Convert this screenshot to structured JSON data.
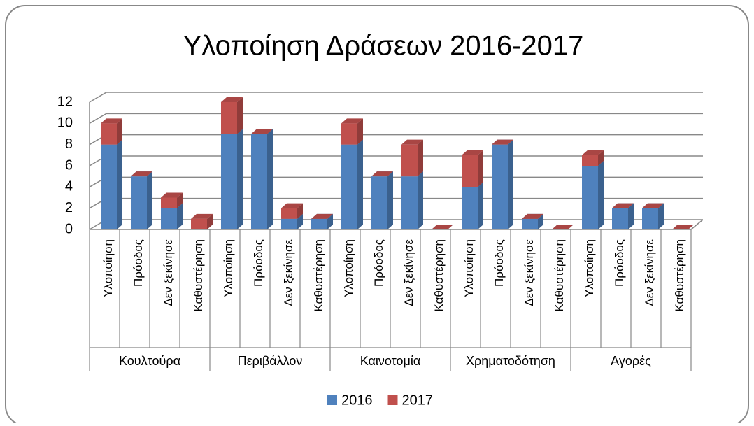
{
  "chart_data": {
    "type": "bar3d_stacked",
    "title": "Υλοποίηση Δράσεων 2016-2017",
    "groups": [
      "Κουλτούρα",
      "Περιβάλλον",
      "Καινοτομία",
      "Χρηματοδότηση",
      "Αγορές"
    ],
    "categories": [
      "Υλοποίηση",
      "Πρόοδος",
      "Δεν ξεκίνησε",
      "Καθυστέρηση",
      "Υλοποίηση",
      "Πρόοδος",
      "Δεν ξεκίνησε",
      "Καθυστέρηση",
      "Υλοποίηση",
      "Πρόοδος",
      "Δεν ξεκίνησε",
      "Καθυστέρηση",
      "Υλοποίηση",
      "Πρόοδος",
      "Δεν ξεκίνησε",
      "Καθυστέρηση",
      "Υλοποίηση",
      "Πρόοδος",
      "Δεν ξεκίνησε",
      "Καθυστέρηση"
    ],
    "series": [
      {
        "name": "2016",
        "color": "#4f81bd",
        "values": [
          8,
          5,
          2,
          0,
          9,
          9,
          1,
          1,
          8,
          5,
          5,
          0,
          4,
          8,
          1,
          0,
          6,
          2,
          2,
          0
        ]
      },
      {
        "name": "2017",
        "color": "#c0504d",
        "values": [
          2,
          0,
          1,
          1,
          3,
          0,
          1,
          0,
          2,
          0,
          3,
          0,
          3,
          0,
          0,
          0,
          1,
          0,
          0,
          0
        ]
      }
    ],
    "ylim": [
      0,
      12
    ],
    "yticks": [
      0,
      2,
      4,
      6,
      8,
      10,
      12
    ],
    "grid": true,
    "legend": "bottom"
  }
}
